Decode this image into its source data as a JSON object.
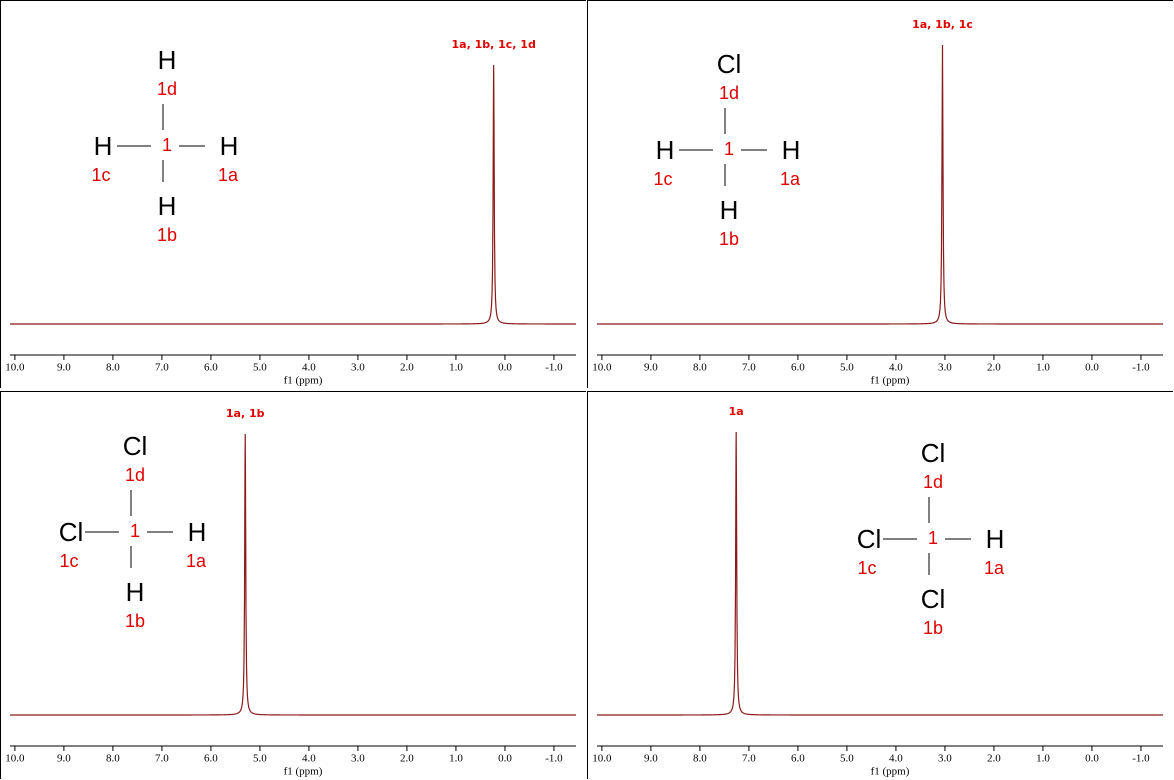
{
  "chart_data": [
    {
      "type": "spectrum",
      "x_label": "f1 (ppm)",
      "xlim": [
        10.1,
        -1.45
      ],
      "color": "#8b1a1a",
      "xticks": [
        {
          "value": 10,
          "label": "10.0"
        },
        {
          "value": 9,
          "label": "9.0"
        },
        {
          "value": 8,
          "label": "8.0"
        },
        {
          "value": 7,
          "label": "7.0"
        },
        {
          "value": 6,
          "label": "6.0"
        },
        {
          "value": 5,
          "label": "5.0"
        },
        {
          "value": 4,
          "label": "4.0"
        },
        {
          "value": 3,
          "label": "3.0"
        },
        {
          "value": 2,
          "label": "2.0"
        },
        {
          "value": 1,
          "label": "1.0"
        },
        {
          "value": 0,
          "label": "0.0"
        },
        {
          "value": -1,
          "label": "-1.0"
        }
      ],
      "peaks": [
        {
          "x": 0.23,
          "label": "1a, 1b, 1c, 1d"
        }
      ],
      "structure": {
        "center": "1",
        "top": {
          "atom": "H",
          "label": "1d"
        },
        "left": {
          "atom": "H",
          "label": "1c"
        },
        "right": {
          "atom": "H",
          "label": "1a"
        },
        "bottom": {
          "atom": "H",
          "label": "1b"
        }
      }
    },
    {
      "type": "spectrum",
      "x_label": "f1 (ppm)",
      "xlim": [
        10.1,
        -1.45
      ],
      "color": "#8b1a1a",
      "xticks": [
        {
          "value": 10,
          "label": "10.0"
        },
        {
          "value": 9,
          "label": "9.0"
        },
        {
          "value": 8,
          "label": "8.0"
        },
        {
          "value": 7,
          "label": "7.0"
        },
        {
          "value": 6,
          "label": "6.0"
        },
        {
          "value": 5,
          "label": "5.0"
        },
        {
          "value": 4,
          "label": "4.0"
        },
        {
          "value": 3,
          "label": "3.0"
        },
        {
          "value": 2,
          "label": "2.0"
        },
        {
          "value": 1,
          "label": "1.0"
        },
        {
          "value": 0,
          "label": "0.0"
        },
        {
          "value": -1,
          "label": "-1.0"
        }
      ],
      "peaks": [
        {
          "x": 3.05,
          "label": "1a, 1b, 1c"
        }
      ],
      "structure": {
        "center": "1",
        "top": {
          "atom": "Cl",
          "label": "1d"
        },
        "left": {
          "atom": "H",
          "label": "1c"
        },
        "right": {
          "atom": "H",
          "label": "1a"
        },
        "bottom": {
          "atom": "H",
          "label": "1b"
        }
      }
    },
    {
      "type": "spectrum",
      "x_label": "f1 (ppm)",
      "xlim": [
        10.1,
        -1.45
      ],
      "color": "#8b1a1a",
      "xticks": [
        {
          "value": 10,
          "label": "10.0"
        },
        {
          "value": 9,
          "label": "9.0"
        },
        {
          "value": 8,
          "label": "8.0"
        },
        {
          "value": 7,
          "label": "7.0"
        },
        {
          "value": 6,
          "label": "6.0"
        },
        {
          "value": 5,
          "label": "5.0"
        },
        {
          "value": 4,
          "label": "4.0"
        },
        {
          "value": 3,
          "label": "3.0"
        },
        {
          "value": 2,
          "label": "2.0"
        },
        {
          "value": 1,
          "label": "1.0"
        },
        {
          "value": 0,
          "label": "0.0"
        },
        {
          "value": -1,
          "label": "-1.0"
        }
      ],
      "peaks": [
        {
          "x": 5.3,
          "label": "1a, 1b"
        }
      ],
      "structure": {
        "center": "1",
        "top": {
          "atom": "Cl",
          "label": "1d"
        },
        "left": {
          "atom": "Cl",
          "label": "1c"
        },
        "right": {
          "atom": "H",
          "label": "1a"
        },
        "bottom": {
          "atom": "H",
          "label": "1b"
        }
      }
    },
    {
      "type": "spectrum",
      "x_label": "f1 (ppm)",
      "xlim": [
        10.1,
        -1.45
      ],
      "color": "#8b1a1a",
      "xticks": [
        {
          "value": 10,
          "label": "10.0"
        },
        {
          "value": 9,
          "label": "9.0"
        },
        {
          "value": 8,
          "label": "8.0"
        },
        {
          "value": 7,
          "label": "7.0"
        },
        {
          "value": 6,
          "label": "6.0"
        },
        {
          "value": 5,
          "label": "5.0"
        },
        {
          "value": 4,
          "label": "4.0"
        },
        {
          "value": 3,
          "label": "3.0"
        },
        {
          "value": 2,
          "label": "2.0"
        },
        {
          "value": 1,
          "label": "1.0"
        },
        {
          "value": 0,
          "label": "0.0"
        },
        {
          "value": -1,
          "label": "-1.0"
        }
      ],
      "peaks": [
        {
          "x": 7.26,
          "label": "1a"
        }
      ],
      "structure": {
        "center": "1",
        "top": {
          "atom": "Cl",
          "label": "1d"
        },
        "left": {
          "atom": "Cl",
          "label": "1c"
        },
        "right": {
          "atom": "H",
          "label": "1a"
        },
        "bottom": {
          "atom": "Cl",
          "label": "1b"
        }
      }
    }
  ]
}
